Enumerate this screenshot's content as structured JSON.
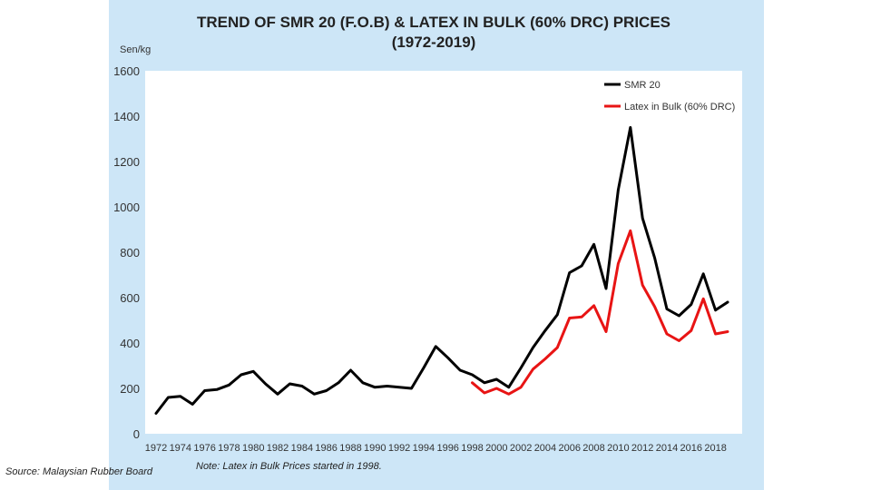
{
  "source_note": "Source: Malaysian Rubber Board",
  "footnote": "Note: Latex in Bulk Prices started in 1998.",
  "colors": {
    "panel": "#cde6f7",
    "plot_bg": "#ffffff",
    "smr20": "#000000",
    "latex": "#e81414"
  },
  "chart_data": {
    "type": "line",
    "title": "TREND OF SMR 20 (F.O.B) & LATEX IN BULK (60% DRC) PRICES",
    "subtitle": "(1972-2019)",
    "ylabel": "Sen/kg",
    "xlabel": "",
    "ylim": [
      0,
      1600
    ],
    "yticks": [
      0,
      200,
      400,
      600,
      800,
      1000,
      1200,
      1400,
      1600
    ],
    "xlim": [
      1972,
      2019
    ],
    "xticks": [
      1972,
      1974,
      1976,
      1978,
      1980,
      1982,
      1984,
      1986,
      1988,
      1990,
      1992,
      1994,
      1996,
      1998,
      2000,
      2002,
      2004,
      2006,
      2008,
      2010,
      2012,
      2014,
      2016,
      2018
    ],
    "grid": false,
    "legend_position": "top-right",
    "series": [
      {
        "name": "SMR 20",
        "color": "#000000",
        "x": [
          1972,
          1973,
          1974,
          1975,
          1976,
          1977,
          1978,
          1979,
          1980,
          1981,
          1982,
          1983,
          1984,
          1985,
          1986,
          1987,
          1988,
          1989,
          1990,
          1991,
          1992,
          1993,
          1994,
          1995,
          1996,
          1997,
          1998,
          1999,
          2000,
          2001,
          2002,
          2003,
          2004,
          2005,
          2006,
          2007,
          2008,
          2009,
          2010,
          2011,
          2012,
          2013,
          2014,
          2015,
          2016,
          2017,
          2018,
          2019
        ],
        "values": [
          90,
          160,
          165,
          130,
          190,
          195,
          215,
          260,
          275,
          220,
          175,
          220,
          210,
          175,
          190,
          225,
          280,
          225,
          205,
          210,
          205,
          200,
          290,
          385,
          335,
          280,
          260,
          225,
          240,
          205,
          290,
          380,
          455,
          525,
          710,
          740,
          835,
          640,
          1075,
          1350,
          950,
          775,
          550,
          520,
          570,
          705,
          545,
          580
        ]
      },
      {
        "name": "Latex in Bulk (60% DRC)",
        "color": "#e81414",
        "x": [
          1998,
          1999,
          2000,
          2001,
          2002,
          2003,
          2004,
          2005,
          2006,
          2007,
          2008,
          2009,
          2010,
          2011,
          2012,
          2013,
          2014,
          2015,
          2016,
          2017,
          2018,
          2019
        ],
        "values": [
          225,
          180,
          200,
          175,
          205,
          285,
          330,
          380,
          510,
          515,
          565,
          450,
          750,
          895,
          655,
          560,
          440,
          410,
          455,
          595,
          440,
          450
        ]
      }
    ]
  }
}
